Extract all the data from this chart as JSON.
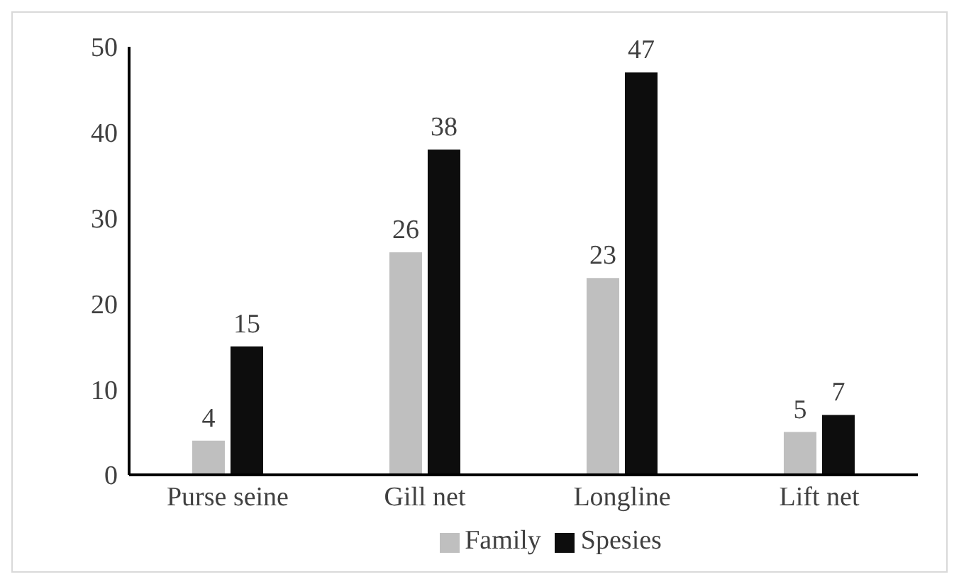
{
  "chart_data": {
    "type": "bar",
    "categories": [
      "Purse seine",
      "Gill net",
      "Longline",
      "Lift net"
    ],
    "series": [
      {
        "name": "Family",
        "color": "#bfbfbf",
        "values": [
          4,
          26,
          23,
          5
        ]
      },
      {
        "name": "Spesies",
        "color": "#0d0d0d",
        "values": [
          15,
          38,
          47,
          7
        ]
      }
    ],
    "ylim": [
      0,
      50
    ],
    "yticks": [
      0,
      10,
      20,
      30,
      40,
      50
    ],
    "grid": false,
    "legend": "bottom",
    "data_labels": true
  }
}
